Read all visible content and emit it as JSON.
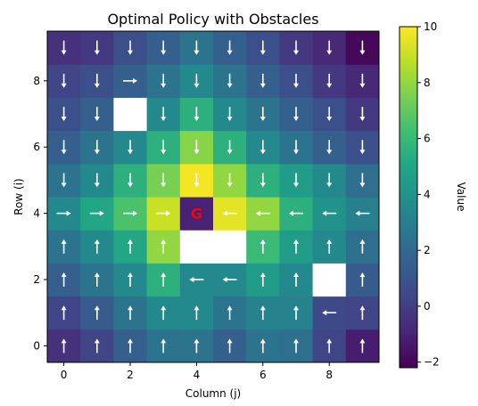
{
  "chart_data": {
    "type": "heatmap",
    "title": "Optimal Policy with Obstacles",
    "xlabel": "Column (j)",
    "ylabel": "Row (i)",
    "x_ticks": [
      0,
      2,
      4,
      6,
      8
    ],
    "y_ticks": [
      0,
      2,
      4,
      6,
      8
    ],
    "colorbar": {
      "label": "Value",
      "min": -2.2,
      "max": 10,
      "ticks": [
        -2,
        0,
        2,
        4,
        6,
        8,
        10
      ],
      "colormap": "viridis"
    },
    "goal": {
      "row": 4,
      "col": 4,
      "label": "G",
      "color": "#ff0000"
    },
    "obstacles": [
      [
        7,
        2
      ],
      [
        3,
        4
      ],
      [
        3,
        5
      ],
      [
        2,
        8
      ]
    ],
    "values": [
      [
        -0.5,
        0.3,
        1.5,
        2.5,
        2.5,
        1.5,
        2.5,
        2.3,
        0.3,
        -1.2
      ],
      [
        0.3,
        1.3,
        2.5,
        3.5,
        3.5,
        2.5,
        3.2,
        3.2,
        0.5,
        0.3
      ],
      [
        1.5,
        2.5,
        3.5,
        5.5,
        3.5,
        3.5,
        4.5,
        3.5,
        null,
        1.3
      ],
      [
        2.5,
        3.5,
        5.0,
        8.0,
        null,
        null,
        6.0,
        4.5,
        3.5,
        2.3
      ],
      [
        3.5,
        5.0,
        6.5,
        9.0,
        -1.0,
        9.5,
        8.0,
        5.5,
        4.0,
        3.0
      ],
      [
        2.5,
        3.5,
        5.5,
        7.5,
        9.8,
        8.0,
        5.5,
        4.5,
        3.5,
        2.2
      ],
      [
        1.5,
        2.5,
        3.5,
        5.5,
        7.8,
        5.5,
        3.5,
        2.5,
        1.5,
        0.8
      ],
      [
        0.8,
        1.5,
        null,
        3.5,
        5.5,
        3.5,
        2.5,
        1.5,
        0.8,
        -0.2
      ],
      [
        0.3,
        0.8,
        1.5,
        2.5,
        3.5,
        2.5,
        1.5,
        0.8,
        -0.2,
        -0.8
      ],
      [
        -0.5,
        -0.2,
        0.8,
        1.5,
        2.5,
        1.5,
        0.8,
        -0.2,
        -0.8,
        -2.0
      ]
    ],
    "policy": [
      [
        "up",
        "up",
        "up",
        "up",
        "up",
        "up",
        "up",
        "up",
        "up",
        "up"
      ],
      [
        "up",
        "up",
        "up",
        "up",
        "up",
        "up",
        "up",
        "up",
        "left",
        "up"
      ],
      [
        "up",
        "up",
        "up",
        "up",
        "left",
        "left",
        "up",
        "up",
        null,
        "up"
      ],
      [
        "up",
        "up",
        "up",
        "up",
        null,
        null,
        "up",
        "up",
        "up",
        "up"
      ],
      [
        "right",
        "right",
        "right",
        "right",
        null,
        "left",
        "left",
        "left",
        "left",
        "left"
      ],
      [
        "down",
        "down",
        "down",
        "down",
        "down",
        "down",
        "down",
        "down",
        "down",
        "down"
      ],
      [
        "down",
        "down",
        "down",
        "down",
        "down",
        "down",
        "down",
        "down",
        "down",
        "down"
      ],
      [
        "down",
        "down",
        null,
        "down",
        "down",
        "down",
        "down",
        "down",
        "down",
        "down"
      ],
      [
        "down",
        "down",
        "right",
        "down",
        "down",
        "down",
        "down",
        "down",
        "down",
        "down"
      ],
      [
        "down",
        "down",
        "down",
        "down",
        "down",
        "down",
        "down",
        "down",
        "down",
        "down"
      ]
    ]
  }
}
